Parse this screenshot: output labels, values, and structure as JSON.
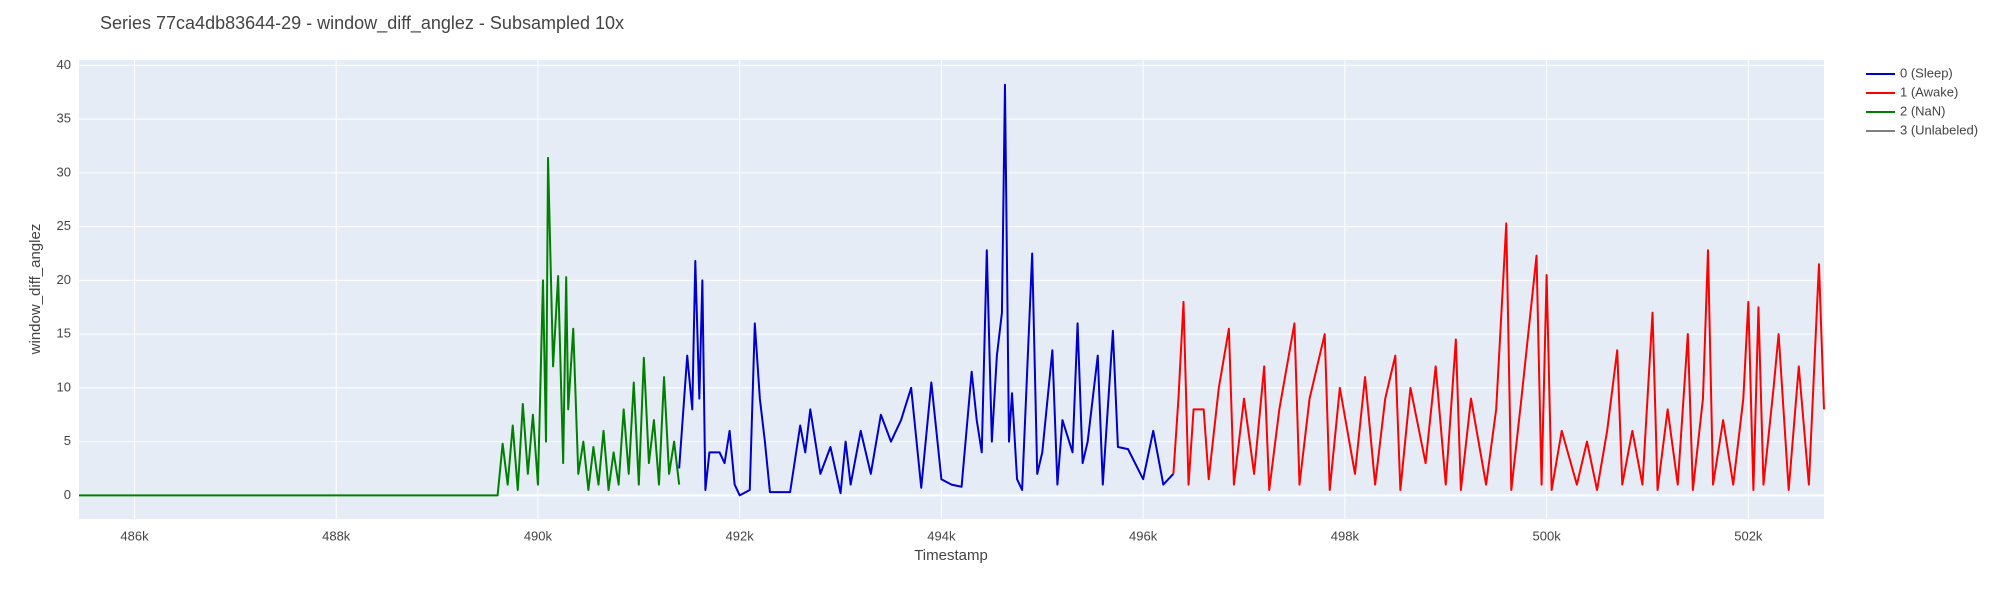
{
  "chart_data": {
    "type": "line",
    "title": "Series 77ca4db83644-29 - window_diff_anglez - Subsampled 10x",
    "x_label": "Timestamp",
    "y_label": "window_diff_anglez",
    "xlim": [
      485450,
      502750
    ],
    "ylim": [
      -2.2,
      40.5
    ],
    "xticks": [
      {
        "value": 486000,
        "label": "486k"
      },
      {
        "value": 488000,
        "label": "488k"
      },
      {
        "value": 490000,
        "label": "490k"
      },
      {
        "value": 492000,
        "label": "492k"
      },
      {
        "value": 494000,
        "label": "494k"
      },
      {
        "value": 496000,
        "label": "496k"
      },
      {
        "value": 498000,
        "label": "498k"
      },
      {
        "value": 500000,
        "label": "500k"
      },
      {
        "value": 502000,
        "label": "502k"
      }
    ],
    "yticks": [
      0,
      5,
      10,
      15,
      20,
      25,
      30,
      35,
      40
    ],
    "grid": true,
    "legend": "right",
    "series": [
      {
        "name": "0 (Sleep)",
        "color": "#0000cc",
        "x": [
          491400,
          491480,
          491530,
          491560,
          491600,
          491630,
          491660,
          491700,
          491800,
          491850,
          491900,
          491950,
          492000,
          492100,
          492150,
          492200,
          492250,
          492300,
          492500,
          492600,
          492650,
          492700,
          492800,
          492900,
          493000,
          493050,
          493100,
          493200,
          493300,
          493400,
          493500,
          493600,
          493700,
          493800,
          493900,
          494000,
          494100,
          494200,
          494300,
          494350,
          494400,
          494450,
          494500,
          494550,
          494600,
          494630,
          494670,
          494700,
          494750,
          494800,
          494900,
          494950,
          495000,
          495100,
          495150,
          495200,
          495300,
          495350,
          495400,
          495450,
          495550,
          495600,
          495700,
          495750,
          495850,
          496000,
          496100,
          496200,
          496300
        ],
        "values": [
          2.5,
          13,
          8,
          21.8,
          9,
          20,
          0.5,
          4,
          4,
          3,
          6,
          1,
          0,
          0.5,
          16,
          9,
          5,
          0.3,
          0.3,
          6.5,
          4,
          8,
          2,
          4.5,
          0.2,
          5,
          1,
          6,
          2,
          7.5,
          5,
          7,
          10,
          0.7,
          10.5,
          1.5,
          1,
          0.8,
          11.5,
          7,
          4,
          22.8,
          5,
          13,
          17,
          38.2,
          5,
          9.5,
          1.5,
          0.5,
          22.5,
          2,
          4,
          13.5,
          1,
          7,
          4,
          16,
          3,
          5,
          13,
          1,
          15.3,
          4.5,
          4.3,
          1.5,
          6,
          1,
          2
        ]
      },
      {
        "name": "1 (Awake)",
        "color": "#ff0000",
        "x": [
          496300,
          496350,
          496400,
          496450,
          496500,
          496600,
          496650,
          496750,
          496850,
          496900,
          497000,
          497100,
          497200,
          497250,
          497350,
          497500,
          497550,
          497650,
          497800,
          497850,
          497950,
          498100,
          498200,
          498300,
          498400,
          498500,
          498550,
          498650,
          498800,
          498900,
          499000,
          499100,
          499150,
          499250,
          499400,
          499500,
          499600,
          499650,
          499750,
          499900,
          499950,
          500000,
          500050,
          500150,
          500300,
          500400,
          500500,
          500600,
          500700,
          500750,
          500850,
          500950,
          501050,
          501100,
          501200,
          501300,
          501400,
          501450,
          501550,
          501600,
          501650,
          501750,
          501850,
          501950,
          502000,
          502050,
          502100,
          502150,
          502250,
          502300,
          502400,
          502500,
          502600,
          502700,
          502750
        ],
        "values": [
          2,
          9,
          18,
          1,
          8,
          8,
          1.5,
          10,
          15.5,
          1,
          9,
          2,
          12,
          0.5,
          8,
          16,
          1,
          9,
          15,
          0.5,
          10,
          2,
          11,
          1,
          9,
          13,
          0.5,
          10,
          3,
          12,
          1,
          14.5,
          0.5,
          9,
          1,
          8,
          25.3,
          0.5,
          9,
          22.3,
          1,
          20.5,
          0.5,
          6,
          1,
          5,
          0.5,
          6,
          13.5,
          1,
          6,
          1,
          17,
          0.5,
          8,
          1,
          15,
          0.5,
          9,
          22.8,
          1,
          7,
          1,
          9,
          18,
          0.5,
          17.5,
          1,
          10,
          15,
          0.5,
          12,
          1,
          21.5,
          8
        ]
      },
      {
        "name": "2 (NaN)",
        "color": "#008000",
        "x": [
          485450,
          489600,
          489650,
          489700,
          489750,
          489800,
          489850,
          489900,
          489950,
          490000,
          490050,
          490080,
          490100,
          490150,
          490200,
          490250,
          490280,
          490300,
          490350,
          490400,
          490450,
          490500,
          490550,
          490600,
          490650,
          490700,
          490750,
          490800,
          490850,
          490900,
          490950,
          491000,
          491050,
          491100,
          491150,
          491200,
          491250,
          491300,
          491350,
          491400
        ],
        "values": [
          0,
          0,
          4.8,
          1,
          6.5,
          0.5,
          8.5,
          2,
          7.5,
          1,
          20,
          5,
          31.4,
          12,
          20.4,
          3,
          20.3,
          8,
          15.5,
          2,
          5,
          0.5,
          4.5,
          1,
          6,
          0.5,
          4,
          1,
          8,
          2,
          10.5,
          1,
          12.8,
          3,
          7,
          1,
          11,
          2,
          5,
          1
        ]
      },
      {
        "name": "3 (Unlabeled)",
        "color": "#808080",
        "x": [],
        "values": []
      }
    ]
  }
}
